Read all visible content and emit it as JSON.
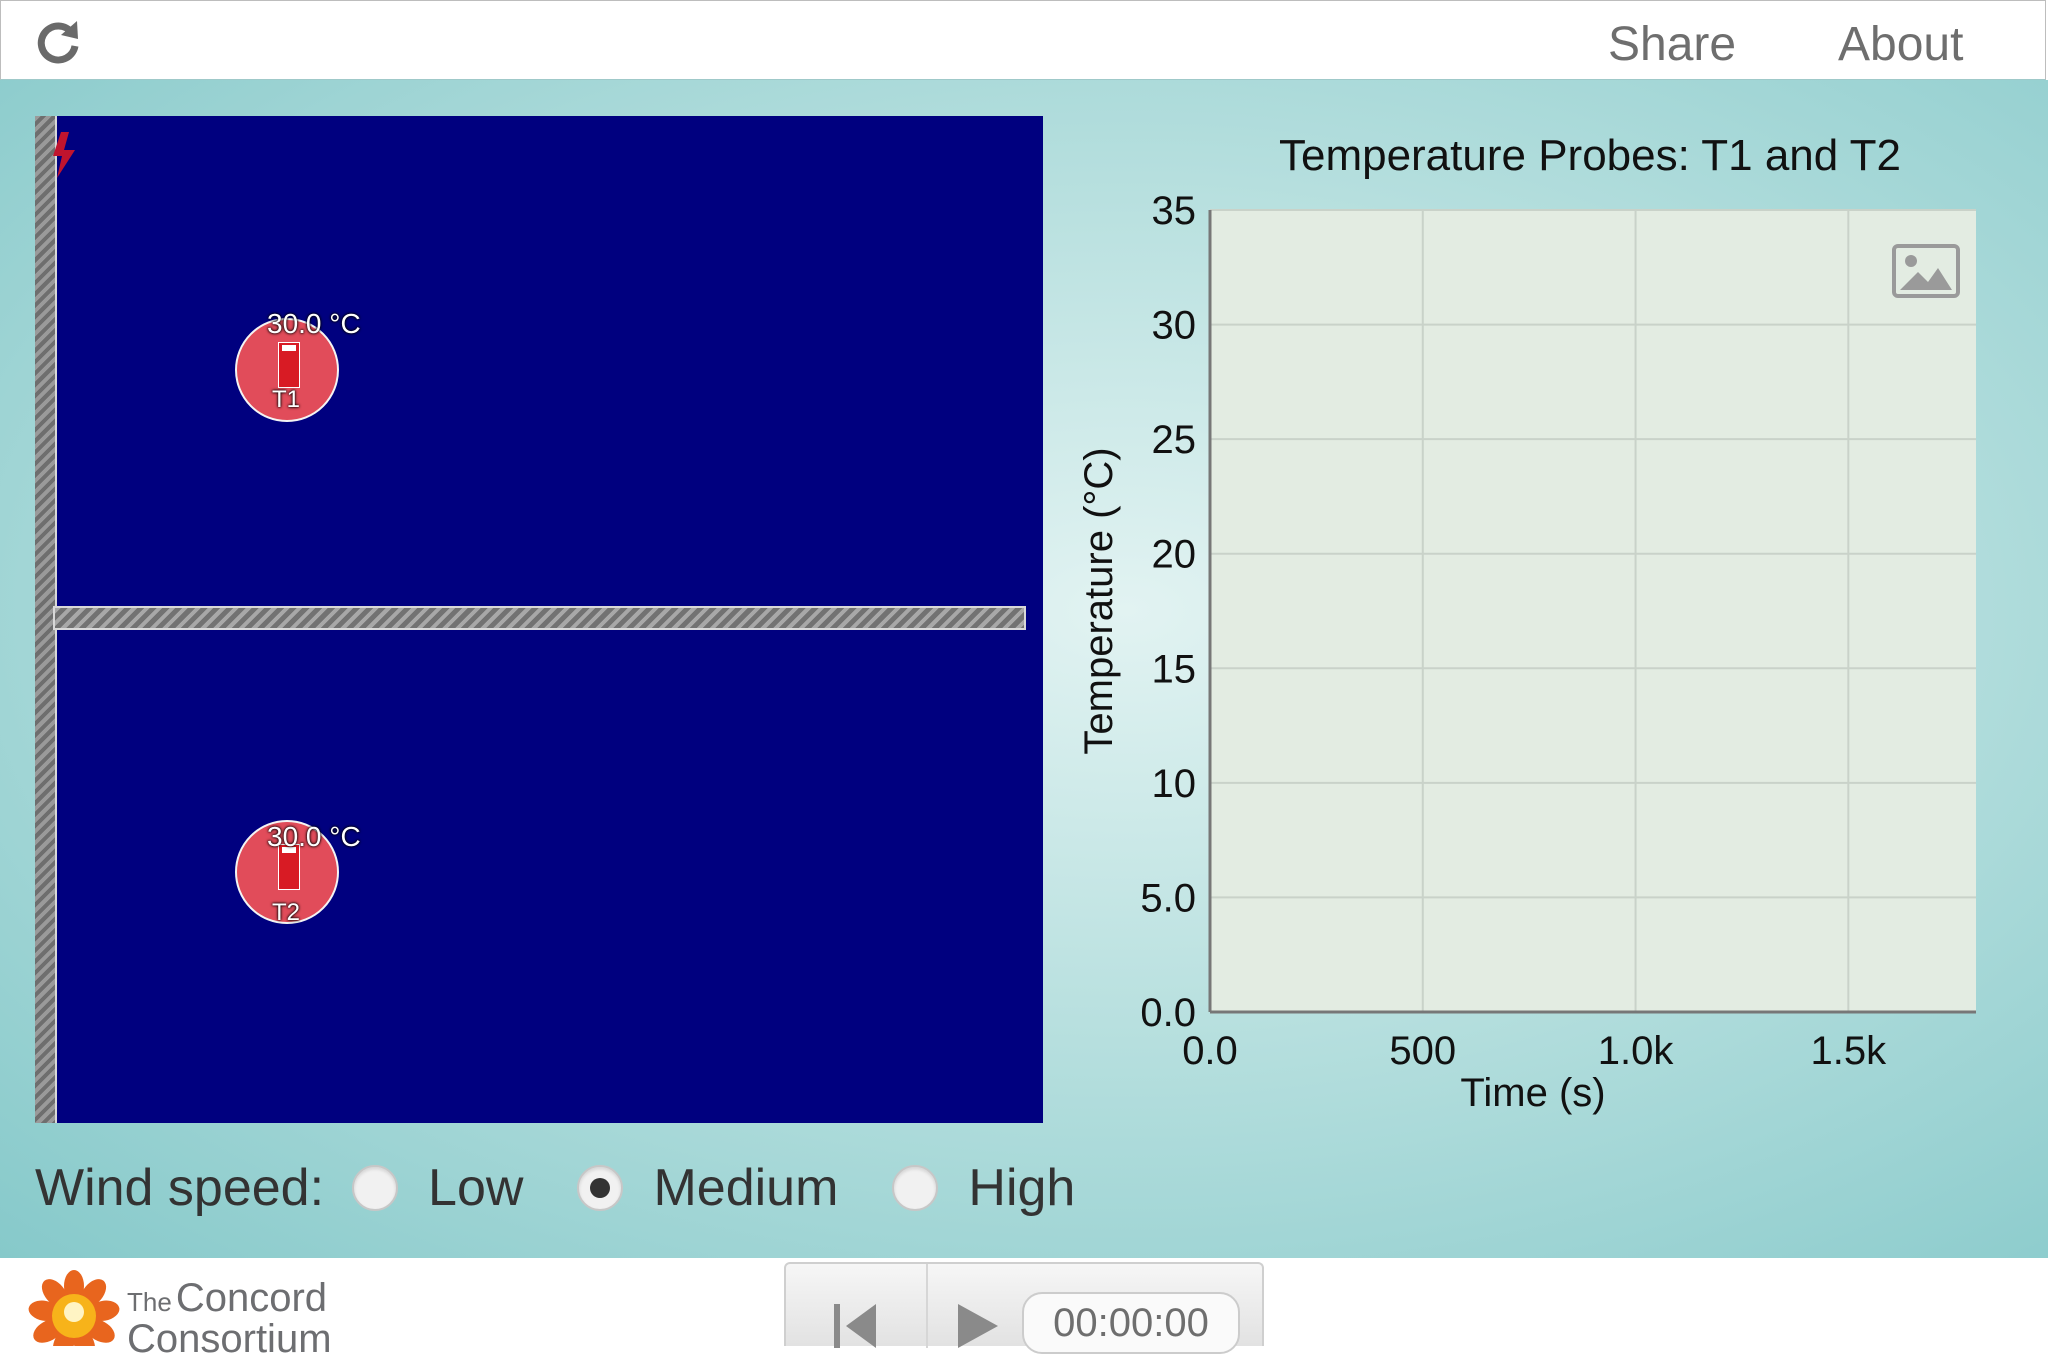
{
  "header": {
    "share_label": "Share",
    "about_label": "About",
    "reload_icon": "reload-icon"
  },
  "simulation": {
    "probes": [
      {
        "label": "T1",
        "reading": "30.0 °C"
      },
      {
        "label": "T2",
        "reading": "30.0 °C"
      }
    ],
    "colors": {
      "background": "#00007f",
      "probe": "#e14c5a",
      "wall": "#808080"
    }
  },
  "chart_data": {
    "type": "line",
    "title": "Temperature Probes: T1 and T2",
    "xlabel": "Time (s)",
    "ylabel": "Temperature (°C)",
    "xlim": [
      0,
      1800
    ],
    "ylim": [
      0,
      35
    ],
    "x_ticks": [
      0,
      500,
      1000,
      1500
    ],
    "x_tick_labels": [
      "0.0",
      "500",
      "1.0k",
      "1.5k"
    ],
    "y_ticks": [
      0,
      5,
      10,
      15,
      20,
      25,
      30,
      35
    ],
    "y_tick_labels": [
      "0.0",
      "5.0",
      "10",
      "15",
      "20",
      "25",
      "30",
      "35"
    ],
    "grid": true,
    "series": [],
    "background": "#e3ece2"
  },
  "wind": {
    "label": "Wind speed:",
    "options": [
      {
        "label": "Low",
        "checked": false
      },
      {
        "label": "Medium",
        "checked": true
      },
      {
        "label": "High",
        "checked": false
      }
    ]
  },
  "footer": {
    "logo_the": "The",
    "logo_line1": "Concord",
    "logo_line2": "Consortium",
    "clock": "00:00:00"
  }
}
